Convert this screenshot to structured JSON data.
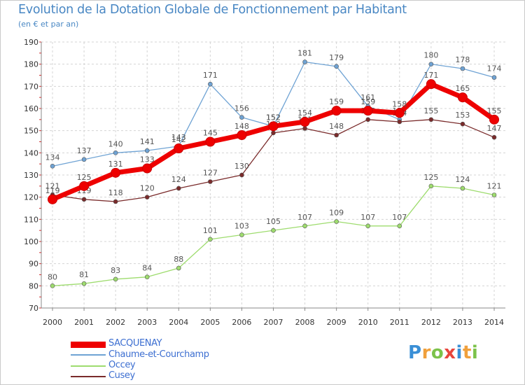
{
  "header": {
    "title": "Evolution de la Dotation Globale de Fonctionnement par Habitant",
    "subtitle": "(en € et par an)"
  },
  "chart_data": {
    "type": "line",
    "title": "Evolution de la Dotation Globale de Fonctionnement par Habitant",
    "subtitle": "(en € et par an)",
    "xlabel": "",
    "ylabel": "",
    "ylim": [
      70,
      190
    ],
    "yticks": [
      70,
      80,
      90,
      100,
      110,
      120,
      130,
      140,
      150,
      160,
      170,
      180,
      190
    ],
    "grid": true,
    "legend_position": "bottom-left",
    "x": [
      "2000",
      "2001",
      "2002",
      "2003",
      "2004",
      "2005",
      "2006",
      "2007",
      "2008",
      "2009",
      "2010",
      "2011",
      "2012",
      "2013",
      "2014"
    ],
    "series": [
      {
        "name": "SACQUENAY",
        "color": "#ee0000",
        "values": [
          119,
          125,
          131,
          133,
          142,
          145,
          148,
          152,
          154,
          159,
          159,
          158,
          171,
          165,
          155
        ]
      },
      {
        "name": "Chaume-et-Courchamp",
        "color": "#6fa3d4",
        "values": [
          134,
          137,
          140,
          141,
          143,
          171,
          156,
          152,
          181,
          179,
          161,
          155,
          180,
          178,
          174
        ]
      },
      {
        "name": "Occey",
        "color": "#9edc6e",
        "values": [
          80,
          81,
          83,
          84,
          88,
          101,
          103,
          105,
          107,
          109,
          107,
          107,
          125,
          124,
          121
        ]
      },
      {
        "name": "Cusey",
        "color": "#7a2b2b",
        "values": [
          121,
          119,
          118,
          120,
          124,
          127,
          130,
          149,
          151,
          148,
          155,
          154,
          155,
          153,
          147
        ]
      }
    ]
  },
  "logo": {
    "letters": [
      "P",
      "r",
      "o",
      "x",
      "i",
      "t",
      "i"
    ],
    "colors": [
      "#3a8fd6",
      "#f0a03c",
      "#7cc24a",
      "#e8453c",
      "#3a8fd6",
      "#f0a03c",
      "#7cc24a"
    ]
  }
}
